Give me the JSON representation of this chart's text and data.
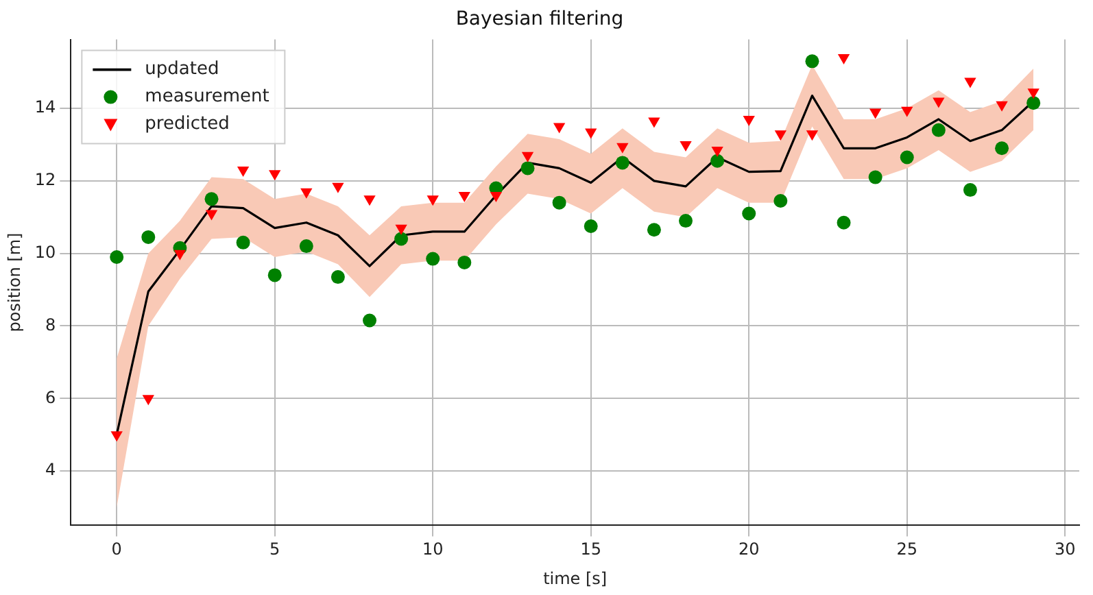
{
  "chart_data": {
    "type": "line",
    "title": "Bayesian filtering",
    "xlabel": "time [s]",
    "ylabel": "position [m]",
    "x": [
      0,
      1,
      2,
      3,
      4,
      5,
      6,
      7,
      8,
      9,
      10,
      11,
      12,
      13,
      14,
      15,
      16,
      17,
      18,
      19,
      20,
      21,
      22,
      23,
      24,
      25,
      26,
      27,
      28,
      29
    ],
    "series": [
      {
        "name": "updated",
        "color": "#000000",
        "marker": "none",
        "values": [
          5.0,
          8.95,
          10.1,
          11.3,
          11.25,
          10.7,
          10.85,
          10.5,
          9.65,
          10.5,
          10.6,
          10.6,
          11.6,
          12.5,
          12.35,
          11.95,
          12.65,
          12.0,
          11.85,
          12.65,
          12.25,
          12.27,
          14.35,
          12.9,
          12.9,
          13.2,
          13.7,
          13.1,
          13.4,
          14.2
        ],
        "lower": [
          3.0,
          8.0,
          9.3,
          10.4,
          10.45,
          9.9,
          10.05,
          9.7,
          8.8,
          9.7,
          9.8,
          9.8,
          10.8,
          11.65,
          11.5,
          11.1,
          11.8,
          11.15,
          11.0,
          11.8,
          11.4,
          11.4,
          13.5,
          12.05,
          12.05,
          12.35,
          12.85,
          12.25,
          12.55,
          13.4
        ],
        "upper": [
          7.1,
          10.0,
          10.9,
          12.1,
          12.05,
          11.5,
          11.65,
          11.3,
          10.5,
          11.3,
          11.4,
          11.4,
          12.4,
          13.3,
          13.15,
          12.75,
          13.45,
          12.8,
          12.65,
          13.45,
          13.05,
          13.1,
          15.2,
          13.7,
          13.7,
          14.0,
          14.5,
          13.9,
          14.2,
          15.1
        ]
      },
      {
        "name": "measurement",
        "type": "scatter",
        "color": "#008000",
        "marker": "circle",
        "values": [
          9.9,
          10.45,
          10.15,
          11.5,
          10.3,
          9.4,
          10.2,
          9.35,
          8.15,
          10.4,
          9.85,
          9.75,
          11.8,
          12.35,
          11.4,
          10.75,
          12.5,
          10.65,
          10.9,
          12.55,
          11.1,
          11.45,
          15.3,
          10.85,
          12.1,
          12.65,
          13.4,
          11.75,
          12.9,
          14.15
        ]
      },
      {
        "name": "predicted",
        "type": "scatter",
        "color": "#ff0000",
        "marker": "triangle",
        "values": [
          5.0,
          6.0,
          10.0,
          11.1,
          12.3,
          12.2,
          11.7,
          11.85,
          11.5,
          10.7,
          11.5,
          11.6,
          11.6,
          12.7,
          13.5,
          13.35,
          12.95,
          13.65,
          13.0,
          12.85,
          13.7,
          13.3,
          13.3,
          15.4,
          13.9,
          13.95,
          14.2,
          14.75,
          14.1,
          14.45
        ]
      }
    ],
    "xlim": [
      -1.45,
      30.45
    ],
    "xticks": [
      0,
      5,
      10,
      15,
      20,
      25,
      30
    ],
    "ylim": [
      2.5,
      15.9
    ],
    "yticks": [
      4,
      6,
      8,
      10,
      12,
      14
    ],
    "grid": true,
    "legend": "top left"
  }
}
